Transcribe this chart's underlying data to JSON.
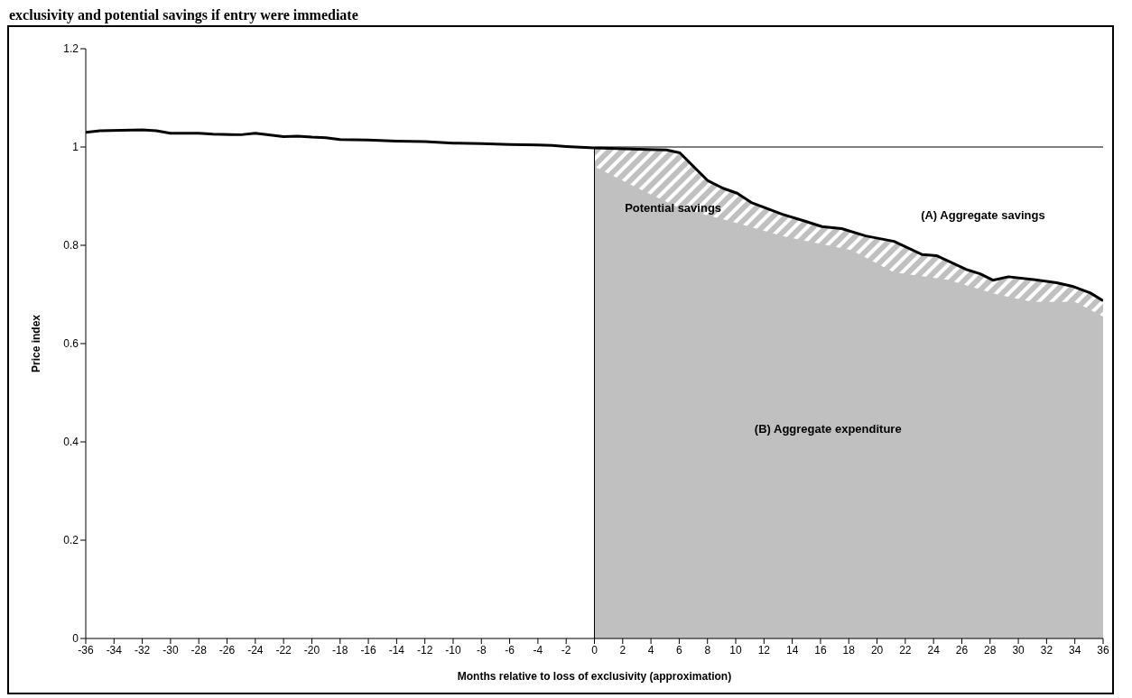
{
  "chart_data": {
    "type": "line",
    "title": "exclusivity and potential savings if entry were immediate",
    "xlabel": "Months relative to loss of exclusivity (approximation)",
    "ylabel": "Price index",
    "xlim": [
      -36,
      36
    ],
    "xticks": [
      -36,
      -34,
      -32,
      -30,
      -28,
      -26,
      -24,
      -22,
      -20,
      -18,
      -16,
      -14,
      -12,
      -10,
      -8,
      -6,
      -4,
      -2,
      0,
      2,
      4,
      6,
      8,
      10,
      12,
      14,
      16,
      18,
      20,
      22,
      24,
      26,
      28,
      30,
      32,
      34,
      36
    ],
    "ylim": [
      0,
      1.2
    ],
    "yticks": [
      0,
      0.2,
      0.4,
      0.6,
      0.8,
      1,
      1.2
    ],
    "grid": false,
    "legend": false,
    "series": [
      {
        "type": "area",
        "color": "#c0c0c0",
        "x": [
          0,
          3.75,
          5.1,
          6.05,
          8,
          9.1,
          10.1,
          11.1,
          13.3,
          14.8,
          16.1,
          17.5,
          19.2,
          21.2,
          23.2,
          24.2,
          26.3,
          27.3,
          28.2,
          29.3,
          31.2,
          32.7,
          33.9,
          35.1,
          36
        ],
        "values": [
          0.998,
          0.995,
          0.994,
          0.988,
          0.932,
          0.916,
          0.906,
          0.887,
          0.863,
          0.85,
          0.838,
          0.834,
          0.819,
          0.808,
          0.781,
          0.779,
          0.751,
          0.742,
          0.729,
          0.736,
          0.73,
          0.724,
          0.716,
          0.703,
          0.687
        ]
      },
      {
        "type": "area",
        "color": "#c0c0c0",
        "x": [
          0,
          3.5,
          6,
          9.6,
          13.3,
          18.2,
          21.2,
          25,
          28.5,
          31,
          34,
          36
        ],
        "values": [
          0.96,
          0.91,
          0.876,
          0.849,
          0.819,
          0.79,
          0.745,
          0.73,
          0.7,
          0.685,
          0.685,
          0.655
        ]
      },
      {
        "color": "#000000",
        "x": [
          -36,
          -35,
          -32,
          -31,
          -30,
          -28,
          -27,
          -25,
          -24,
          -22,
          -21,
          -20,
          -19,
          -18,
          -16,
          -14,
          -12,
          -10,
          -8,
          -6,
          -4,
          -3,
          -2,
          0,
          3.75,
          5.1,
          6.05,
          8,
          9.1,
          10.1,
          11.1,
          13.3,
          14.8,
          16.1,
          17.5,
          19.2,
          21.2,
          23.2,
          24.2,
          26.3,
          27.3,
          28.2,
          29.3,
          31.2,
          32.7,
          33.9,
          35.1,
          36
        ],
        "values": [
          1.03,
          1.033,
          1.035,
          1.033,
          1.028,
          1.028,
          1.026,
          1.025,
          1.028,
          1.021,
          1.022,
          1.02,
          1.019,
          1.015,
          1.014,
          1.012,
          1.011,
          1.008,
          1.007,
          1.005,
          1.004,
          1.003,
          1.001,
          0.998,
          0.995,
          0.994,
          0.988,
          0.932,
          0.916,
          0.906,
          0.887,
          0.863,
          0.85,
          0.838,
          0.834,
          0.819,
          0.808,
          0.781,
          0.779,
          0.751,
          0.742,
          0.729,
          0.736,
          0.73,
          0.724,
          0.716,
          0.703,
          0.687
        ]
      }
    ],
    "ref_lines": [
      {
        "axis": "x",
        "value": 0
      },
      {
        "axis": "y",
        "value": 1
      }
    ],
    "annotations": [
      "Potential savings",
      "(A) Aggregate savings",
      "(B) Aggregate expenditure"
    ]
  }
}
